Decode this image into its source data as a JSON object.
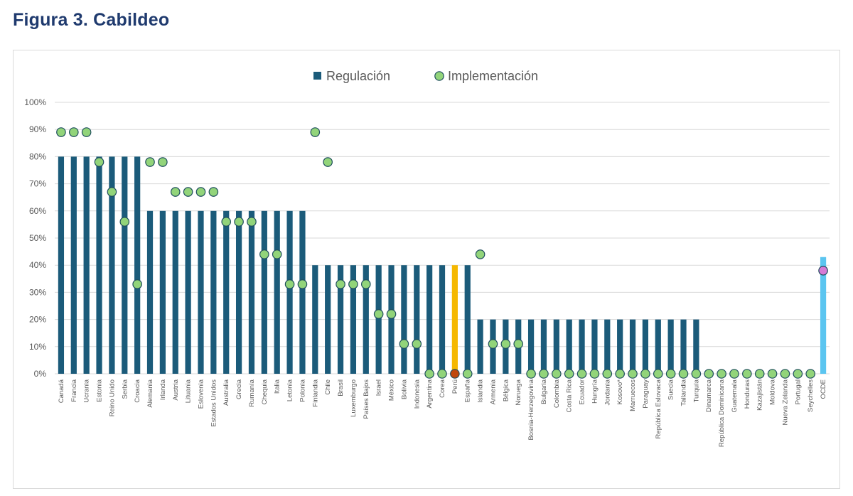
{
  "figure_title": "Figura 3. Cabildeo",
  "chart_data": {
    "type": "bar",
    "ylim": [
      0,
      100
    ],
    "yticks": [
      0,
      10,
      20,
      30,
      40,
      50,
      60,
      70,
      80,
      90,
      100
    ],
    "ytick_suffix": "%",
    "grid": true,
    "legend_position": "top-center",
    "categories": [
      "Canadá",
      "Francia",
      "Ucrania",
      "Estonia",
      "Reino Unido",
      "Serbia",
      "Croacia",
      "Alemania",
      "Irlanda",
      "Austria",
      "Lituania",
      "Eslovenia",
      "Estados Unidos",
      "Australia",
      "Grecia",
      "Rumanía",
      "Chequia",
      "Italia",
      "Letonia",
      "Polonia",
      "Finlandia",
      "Chile",
      "Brasil",
      "Luxemburgo",
      "Países Bajos",
      "Israel",
      "México",
      "Bolivia",
      "Indonesia",
      "Argentina",
      "Corea",
      "Perú",
      "España",
      "Islandia",
      "Armenia",
      "Bélgica",
      "Noruega",
      "Bosnia-Herzegovina",
      "Bulgaria",
      "Colombia",
      "Costa Rica",
      "Ecuador",
      "Hungría",
      "Jordania",
      "Kosovo*",
      "Marruecos",
      "Paraguay",
      "República Eslovaca",
      "Suecia",
      "Tailandia",
      "Turquía",
      "Dinamarca",
      "República Dominicana",
      "Guatemala",
      "Honduras",
      "Kazajistán",
      "Moldova",
      "Nueva Zelanda",
      "Portugal",
      "Seychelles",
      "OCDE"
    ],
    "series": [
      {
        "name": "Regulación",
        "values": [
          80,
          80,
          80,
          80,
          80,
          80,
          80,
          60,
          60,
          60,
          60,
          60,
          60,
          60,
          60,
          60,
          60,
          60,
          60,
          60,
          40,
          40,
          40,
          40,
          40,
          40,
          40,
          40,
          40,
          40,
          40,
          40,
          40,
          20,
          20,
          20,
          20,
          20,
          20,
          20,
          20,
          20,
          20,
          20,
          20,
          20,
          20,
          20,
          20,
          20,
          20,
          0,
          0,
          0,
          0,
          0,
          0,
          0,
          0,
          0,
          43
        ]
      },
      {
        "name": "Implementación",
        "values": [
          89,
          89,
          89,
          78,
          67,
          56,
          33,
          78,
          78,
          67,
          67,
          67,
          67,
          56,
          56,
          56,
          44,
          44,
          33,
          33,
          89,
          78,
          33,
          33,
          33,
          22,
          22,
          11,
          11,
          0,
          0,
          0,
          0,
          44,
          11,
          11,
          11,
          0,
          0,
          0,
          0,
          0,
          0,
          0,
          0,
          0,
          0,
          0,
          0,
          0,
          0,
          0,
          0,
          0,
          0,
          0,
          0,
          0,
          0,
          0,
          38
        ]
      }
    ],
    "colors": {
      "bar": "#1b5b7a",
      "bar_highlight_peru": "#f5b800",
      "bar_highlight_ocde": "#5bc5f0",
      "marker": "#92d47a",
      "marker_edge": "#1f4e5f",
      "marker_highlight_peru": "#c0470c",
      "marker_highlight_ocde": "#d67ad6",
      "grid": "#d9d9d9",
      "tick_text": "#595959",
      "legend_text": "#595959"
    }
  }
}
